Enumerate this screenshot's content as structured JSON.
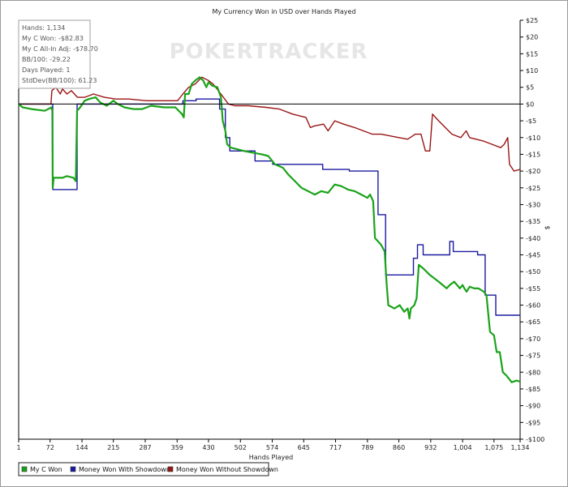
{
  "watermark": "POKERTRACKER",
  "stats": [
    "Hands: 1,134",
    "My C Won: -$82.83",
    "My C All-In Adj: -$78.70",
    "BB/100: -29.22",
    "Days Played: 1",
    "StdDev(BB/100): 61.23"
  ],
  "colors": {
    "my_c_won": "#1aa31a",
    "with_showdown": "#1a1aa0",
    "without_showdown": "#9a1414",
    "zero_line": "#000000",
    "stats_border": "#a0a0a0",
    "stats_text": "#555555"
  },
  "chart_data": {
    "type": "line",
    "title": "My Currency Won in USD over Hands Played",
    "xlabel": "Hands Played",
    "ylabel": "$",
    "xlim": [
      1,
      1134
    ],
    "ylim": [
      -100,
      25
    ],
    "x_ticks": [
      1,
      72,
      144,
      215,
      287,
      359,
      430,
      502,
      574,
      645,
      717,
      789,
      860,
      932,
      1004,
      1075,
      1134
    ],
    "x_tick_labels": [
      "1",
      "72",
      "144",
      "215",
      "287",
      "359",
      "430",
      "502",
      "574",
      "645",
      "717",
      "789",
      "860",
      "932",
      "1,004",
      "1,075",
      "1,134"
    ],
    "y_ticks": [
      25,
      20,
      15,
      10,
      5,
      0,
      -5,
      -10,
      -15,
      -20,
      -25,
      -30,
      -35,
      -40,
      -45,
      -50,
      -55,
      -60,
      -65,
      -70,
      -75,
      -80,
      -85,
      -90,
      -95,
      -100
    ],
    "y_tick_labels": [
      "$25",
      "$20",
      "$15",
      "$10",
      "$5",
      "$0",
      "-$5",
      "-$10",
      "-$15",
      "-$20",
      "-$25",
      "-$30",
      "-$35",
      "-$40",
      "-$45",
      "-$50",
      "-$55",
      "-$60",
      "-$65",
      "-$70",
      "-$75",
      "-$80",
      "-$85",
      "-$90",
      "-$95",
      "-$100"
    ],
    "grid": false,
    "legend_position": "bottom-left",
    "series": [
      {
        "name": "My C Won",
        "key": "my_c_won",
        "points": [
          [
            1,
            0
          ],
          [
            10,
            -1
          ],
          [
            30,
            -1.5
          ],
          [
            60,
            -2
          ],
          [
            75,
            -1
          ],
          [
            77,
            -2
          ],
          [
            78,
            -25
          ],
          [
            80,
            -22
          ],
          [
            100,
            -22
          ],
          [
            110,
            -21.5
          ],
          [
            125,
            -22
          ],
          [
            130,
            -23
          ],
          [
            133,
            -2
          ],
          [
            140,
            -1
          ],
          [
            150,
            1
          ],
          [
            160,
            1.5
          ],
          [
            175,
            2
          ],
          [
            185,
            0.5
          ],
          [
            200,
            -0.5
          ],
          [
            215,
            1
          ],
          [
            225,
            0
          ],
          [
            240,
            -1
          ],
          [
            260,
            -1.5
          ],
          [
            280,
            -1.5
          ],
          [
            300,
            -0.5
          ],
          [
            330,
            -1
          ],
          [
            355,
            -1
          ],
          [
            370,
            -3
          ],
          [
            374,
            -4
          ],
          [
            377,
            3
          ],
          [
            385,
            3
          ],
          [
            392,
            6
          ],
          [
            400,
            7
          ],
          [
            410,
            8
          ],
          [
            418,
            7
          ],
          [
            425,
            5
          ],
          [
            430,
            6.5
          ],
          [
            438,
            5.5
          ],
          [
            450,
            5
          ],
          [
            458,
            2
          ],
          [
            462,
            -5
          ],
          [
            468,
            -8
          ],
          [
            472,
            -12
          ],
          [
            480,
            -13
          ],
          [
            495,
            -13.5
          ],
          [
            510,
            -14
          ],
          [
            530,
            -14.5
          ],
          [
            550,
            -15
          ],
          [
            565,
            -15.5
          ],
          [
            580,
            -18
          ],
          [
            598,
            -19
          ],
          [
            610,
            -21
          ],
          [
            625,
            -23
          ],
          [
            640,
            -25
          ],
          [
            655,
            -26
          ],
          [
            670,
            -27
          ],
          [
            685,
            -26
          ],
          [
            700,
            -26.5
          ],
          [
            715,
            -24
          ],
          [
            730,
            -24.5
          ],
          [
            745,
            -25.5
          ],
          [
            760,
            -26
          ],
          [
            775,
            -27
          ],
          [
            789,
            -28
          ],
          [
            795,
            -27
          ],
          [
            802,
            -29
          ],
          [
            806,
            -40
          ],
          [
            820,
            -42
          ],
          [
            828,
            -44
          ],
          [
            832,
            -53
          ],
          [
            836,
            -60
          ],
          [
            850,
            -61
          ],
          [
            862,
            -60
          ],
          [
            872,
            -62
          ],
          [
            880,
            -61
          ],
          [
            884,
            -64
          ],
          [
            887,
            -61
          ],
          [
            895,
            -60
          ],
          [
            900,
            -58
          ],
          [
            905,
            -48
          ],
          [
            915,
            -49
          ],
          [
            930,
            -51
          ],
          [
            950,
            -53
          ],
          [
            968,
            -55
          ],
          [
            975,
            -54
          ],
          [
            985,
            -53
          ],
          [
            998,
            -55
          ],
          [
            1004,
            -54
          ],
          [
            1008,
            -55
          ],
          [
            1013,
            -56
          ],
          [
            1020,
            -54.5
          ],
          [
            1030,
            -55
          ],
          [
            1040,
            -55
          ],
          [
            1052,
            -56
          ],
          [
            1058,
            -57
          ],
          [
            1066,
            -68
          ],
          [
            1075,
            -69
          ],
          [
            1081,
            -74
          ],
          [
            1088,
            -74
          ],
          [
            1095,
            -80
          ],
          [
            1103,
            -81
          ],
          [
            1115,
            -83
          ],
          [
            1126,
            -82.5
          ],
          [
            1134,
            -82.83
          ]
        ]
      },
      {
        "name": "Money Won With Showdown",
        "key": "with_showdown",
        "points": [
          [
            1,
            0
          ],
          [
            78,
            0
          ],
          [
            78,
            -25.5
          ],
          [
            133,
            -25.5
          ],
          [
            133,
            0
          ],
          [
            372,
            0
          ],
          [
            372,
            1
          ],
          [
            402,
            1
          ],
          [
            402,
            1.5
          ],
          [
            455,
            1.5
          ],
          [
            455,
            -1.5
          ],
          [
            468,
            -1.5
          ],
          [
            468,
            -10
          ],
          [
            478,
            -10
          ],
          [
            478,
            -14
          ],
          [
            535,
            -14
          ],
          [
            535,
            -17
          ],
          [
            575,
            -17
          ],
          [
            575,
            -18
          ],
          [
            688,
            -18
          ],
          [
            688,
            -19.5
          ],
          [
            748,
            -19.5
          ],
          [
            748,
            -20
          ],
          [
            813,
            -20
          ],
          [
            813,
            -33
          ],
          [
            830,
            -33
          ],
          [
            830,
            -51
          ],
          [
            893,
            -51
          ],
          [
            893,
            -46
          ],
          [
            902,
            -46
          ],
          [
            902,
            -42
          ],
          [
            915,
            -42
          ],
          [
            915,
            -45
          ],
          [
            975,
            -45
          ],
          [
            975,
            -41
          ],
          [
            983,
            -41
          ],
          [
            983,
            -44
          ],
          [
            1038,
            -44
          ],
          [
            1038,
            -45
          ],
          [
            1055,
            -45
          ],
          [
            1055,
            -57
          ],
          [
            1079,
            -57
          ],
          [
            1079,
            -63
          ],
          [
            1134,
            -63
          ]
        ]
      },
      {
        "name": "Money Won Without Showdown",
        "key": "without_showdown",
        "points": [
          [
            1,
            0
          ],
          [
            74,
            0
          ],
          [
            76,
            4
          ],
          [
            85,
            5
          ],
          [
            95,
            3
          ],
          [
            100,
            4.5
          ],
          [
            110,
            3
          ],
          [
            120,
            4
          ],
          [
            134,
            2
          ],
          [
            150,
            2
          ],
          [
            170,
            3
          ],
          [
            195,
            2
          ],
          [
            220,
            1.5
          ],
          [
            250,
            1.5
          ],
          [
            290,
            1
          ],
          [
            330,
            1
          ],
          [
            360,
            1
          ],
          [
            372,
            3
          ],
          [
            385,
            5
          ],
          [
            400,
            6
          ],
          [
            415,
            8
          ],
          [
            430,
            7
          ],
          [
            440,
            6
          ],
          [
            458,
            3
          ],
          [
            475,
            0
          ],
          [
            490,
            -0.5
          ],
          [
            520,
            -0.5
          ],
          [
            560,
            -1
          ],
          [
            590,
            -1.5
          ],
          [
            620,
            -3
          ],
          [
            650,
            -4
          ],
          [
            660,
            -7
          ],
          [
            670,
            -6.5
          ],
          [
            690,
            -6
          ],
          [
            700,
            -8
          ],
          [
            715,
            -5
          ],
          [
            735,
            -6
          ],
          [
            760,
            -7
          ],
          [
            780,
            -8
          ],
          [
            800,
            -9
          ],
          [
            820,
            -9
          ],
          [
            840,
            -9.5
          ],
          [
            860,
            -10
          ],
          [
            880,
            -10.5
          ],
          [
            897,
            -9
          ],
          [
            910,
            -9
          ],
          [
            920,
            -14
          ],
          [
            930,
            -14
          ],
          [
            936,
            -3
          ],
          [
            950,
            -5
          ],
          [
            965,
            -7
          ],
          [
            980,
            -9
          ],
          [
            1000,
            -10
          ],
          [
            1012,
            -8
          ],
          [
            1020,
            -10
          ],
          [
            1050,
            -11
          ],
          [
            1070,
            -12
          ],
          [
            1090,
            -13
          ],
          [
            1098,
            -12
          ],
          [
            1106,
            -10
          ],
          [
            1110,
            -18
          ],
          [
            1120,
            -20
          ],
          [
            1134,
            -19.5
          ]
        ]
      }
    ]
  }
}
